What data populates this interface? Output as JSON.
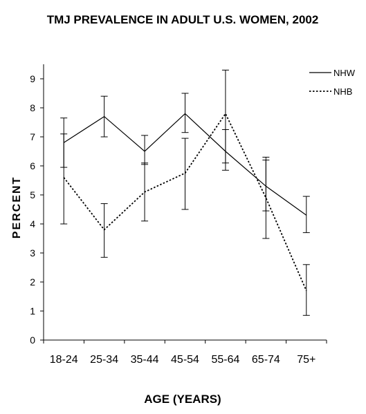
{
  "chart_data": {
    "type": "line",
    "title": "TMJ PREVALENCE IN ADULT U.S. WOMEN, 2002",
    "xlabel": "AGE (YEARS)",
    "ylabel": "PERCENT",
    "categories": [
      "18-24",
      "25-34",
      "35-44",
      "45-54",
      "55-64",
      "65-74",
      "75+"
    ],
    "ylim": [
      0,
      9.5
    ],
    "yticks": [
      0,
      1,
      2,
      3,
      4,
      5,
      6,
      7,
      8,
      9
    ],
    "legend_position": "top-right",
    "series": [
      {
        "name": "NHW",
        "style": "solid",
        "values": [
          6.8,
          7.7,
          6.5,
          7.8,
          6.5,
          5.3,
          4.3
        ],
        "error_low": [
          5.95,
          7.0,
          6.05,
          7.15,
          5.85,
          4.45,
          3.7
        ],
        "error_high": [
          7.65,
          8.4,
          7.05,
          8.5,
          7.25,
          6.2,
          4.95
        ]
      },
      {
        "name": "NHB",
        "style": "dotted",
        "values": [
          5.6,
          3.8,
          5.1,
          5.75,
          7.8,
          4.9,
          1.7
        ],
        "error_low": [
          4.0,
          2.85,
          4.1,
          4.5,
          6.1,
          3.5,
          0.85
        ],
        "error_high": [
          7.1,
          4.7,
          6.1,
          6.95,
          9.3,
          6.3,
          2.6
        ]
      }
    ],
    "colors": {
      "line": "#000000",
      "background": "#ffffff"
    }
  }
}
